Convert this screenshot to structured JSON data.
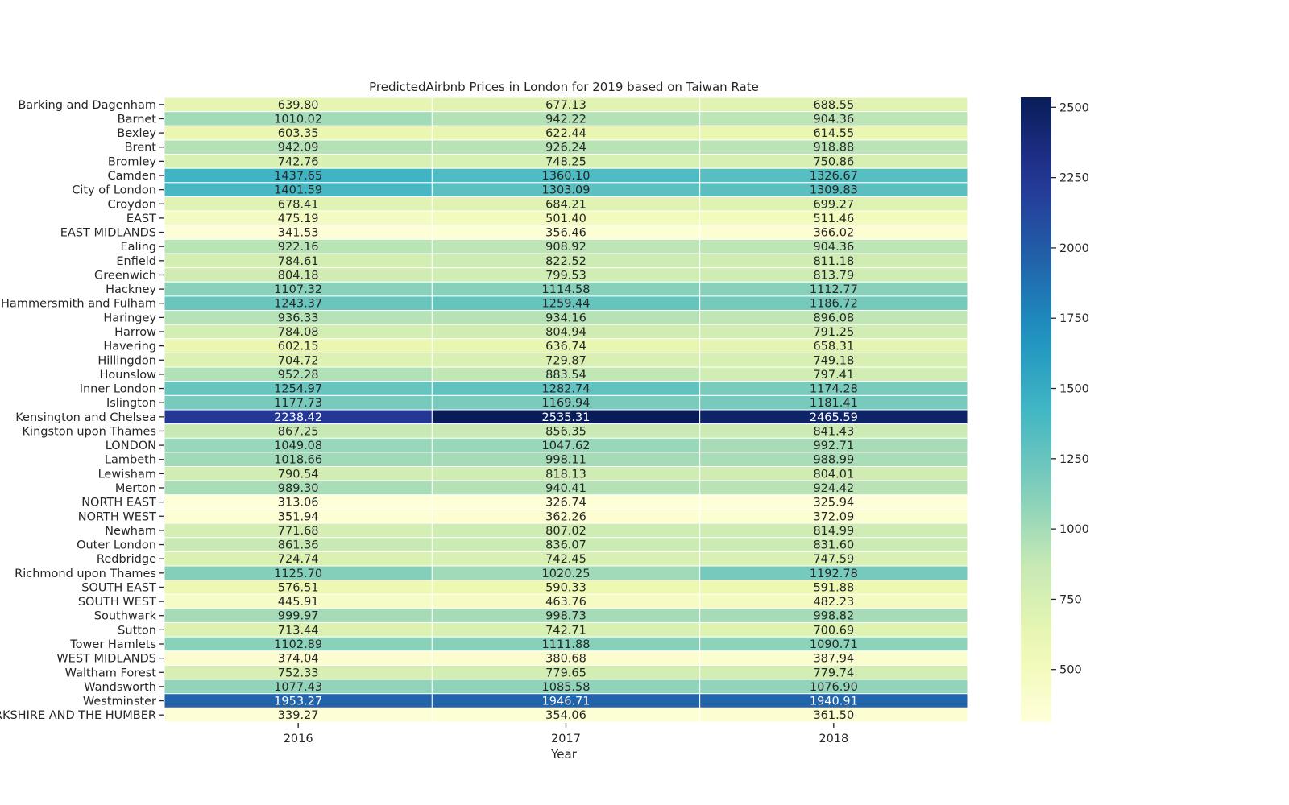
{
  "chart_data": {
    "type": "heatmap",
    "title": "PredictedAirbnb Prices in London for 2019 based on Taiwan Rate",
    "xlabel": "Year",
    "ylabel": "",
    "x": [
      "2016",
      "2017",
      "2018"
    ],
    "y": [
      "Barking and Dagenham",
      "Barnet",
      "Bexley",
      "Brent",
      "Bromley",
      "Camden",
      "City of London",
      "Croydon",
      "EAST",
      "EAST MIDLANDS",
      "Ealing",
      "Enfield",
      "Greenwich",
      "Hackney",
      "Hammersmith and Fulham",
      "Haringey",
      "Harrow",
      "Havering",
      "Hillingdon",
      "Hounslow",
      "Inner London",
      "Islington",
      "Kensington and Chelsea",
      "Kingston upon Thames",
      "LONDON",
      "Lambeth",
      "Lewisham",
      "Merton",
      "NORTH EAST",
      "NORTH WEST",
      "Newham",
      "Outer London",
      "Redbridge",
      "Richmond upon Thames",
      "SOUTH EAST",
      "SOUTH WEST",
      "Southwark",
      "Sutton",
      "Tower Hamlets",
      "WEST MIDLANDS",
      "Waltham Forest",
      "Wandsworth",
      "Westminster",
      "YORKSHIRE AND THE HUMBER"
    ],
    "values": [
      [
        639.8,
        677.13,
        688.55
      ],
      [
        1010.02,
        942.22,
        904.36
      ],
      [
        603.35,
        622.44,
        614.55
      ],
      [
        942.09,
        926.24,
        918.88
      ],
      [
        742.76,
        748.25,
        750.86
      ],
      [
        1437.65,
        1360.1,
        1326.67
      ],
      [
        1401.59,
        1303.09,
        1309.83
      ],
      [
        678.41,
        684.21,
        699.27
      ],
      [
        475.19,
        501.4,
        511.46
      ],
      [
        341.53,
        356.46,
        366.02
      ],
      [
        922.16,
        908.92,
        904.36
      ],
      [
        784.61,
        822.52,
        811.18
      ],
      [
        804.18,
        799.53,
        813.79
      ],
      [
        1107.32,
        1114.58,
        1112.77
      ],
      [
        1243.37,
        1259.44,
        1186.72
      ],
      [
        936.33,
        934.16,
        896.08
      ],
      [
        784.08,
        804.94,
        791.25
      ],
      [
        602.15,
        636.74,
        658.31
      ],
      [
        704.72,
        729.87,
        749.18
      ],
      [
        952.28,
        883.54,
        797.41
      ],
      [
        1254.97,
        1282.74,
        1174.28
      ],
      [
        1177.73,
        1169.94,
        1181.41
      ],
      [
        2238.42,
        2535.31,
        2465.59
      ],
      [
        867.25,
        856.35,
        841.43
      ],
      [
        1049.08,
        1047.62,
        992.71
      ],
      [
        1018.66,
        998.11,
        988.99
      ],
      [
        790.54,
        818.13,
        804.01
      ],
      [
        989.3,
        940.41,
        924.42
      ],
      [
        313.06,
        326.74,
        325.94
      ],
      [
        351.94,
        362.26,
        372.09
      ],
      [
        771.68,
        807.02,
        814.99
      ],
      [
        861.36,
        836.07,
        831.6
      ],
      [
        724.74,
        742.45,
        747.59
      ],
      [
        1125.7,
        1020.25,
        1192.78
      ],
      [
        576.51,
        590.33,
        591.88
      ],
      [
        445.91,
        463.76,
        482.23
      ],
      [
        999.97,
        998.73,
        998.82
      ],
      [
        713.44,
        742.71,
        700.69
      ],
      [
        1102.89,
        1111.88,
        1090.71
      ],
      [
        374.04,
        380.68,
        387.94
      ],
      [
        752.33,
        779.65,
        779.74
      ],
      [
        1077.43,
        1085.58,
        1076.9
      ],
      [
        1953.27,
        1946.71,
        1940.91
      ],
      [
        339.27,
        354.06,
        361.5
      ]
    ],
    "value_format": "2 decimals",
    "colormap": "YlGnBu",
    "color_range": [
      313.06,
      2535.31
    ],
    "colorbar_ticks": [
      500,
      750,
      1000,
      1250,
      1500,
      1750,
      2000,
      2250,
      2500
    ],
    "grid": false,
    "legend": "colorbar right"
  }
}
